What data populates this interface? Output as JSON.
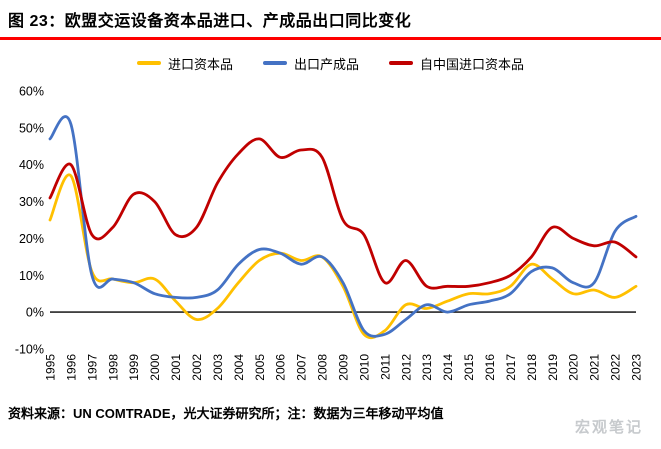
{
  "header": {
    "title": "图 23：欧盟交运设备资本品进口、产成品出口同比变化"
  },
  "legend": [
    {
      "label": "进口资本品",
      "color": "#FFC000"
    },
    {
      "label": "出口产成品",
      "color": "#4472C4"
    },
    {
      "label": "自中国进口资本品",
      "color": "#C00000"
    }
  ],
  "chart_data": {
    "type": "line",
    "title": "欧盟交运设备资本品进口、产成品出口同比变化",
    "xlabel": "",
    "ylabel": "",
    "ylim": [
      -10,
      60
    ],
    "yticks": [
      60,
      50,
      40,
      30,
      20,
      10,
      0,
      -10
    ],
    "ytick_suffix": "%",
    "grid": false,
    "legend_position": "top",
    "x": [
      1995,
      1996,
      1997,
      1998,
      1999,
      2000,
      2001,
      2002,
      2003,
      2004,
      2005,
      2006,
      2007,
      2008,
      2009,
      2010,
      2011,
      2012,
      2013,
      2014,
      2015,
      2016,
      2017,
      2018,
      2019,
      2020,
      2021,
      2022,
      2023
    ],
    "series": [
      {
        "name": "进口资本品",
        "color": "#FFC000",
        "values": [
          25,
          37,
          11,
          9,
          8,
          9,
          3,
          -2,
          1,
          8,
          14,
          16,
          14,
          15,
          7,
          -6,
          -5,
          2,
          1,
          3,
          5,
          5,
          7,
          13,
          9,
          5,
          6,
          4,
          7
        ]
      },
      {
        "name": "出口产成品",
        "color": "#4472C4",
        "values": [
          47,
          51,
          10,
          9,
          8,
          5,
          4,
          4,
          6,
          13,
          17,
          16,
          13,
          15,
          8,
          -5,
          -6,
          -2,
          2,
          0,
          2,
          3,
          5,
          11,
          12,
          8,
          8,
          22,
          26
        ]
      },
      {
        "name": "自中国进口资本品",
        "color": "#C00000",
        "values": [
          31,
          40,
          21,
          23,
          32,
          30,
          21,
          23,
          35,
          43,
          47,
          42,
          44,
          42,
          25,
          21,
          8,
          14,
          7,
          7,
          7,
          8,
          10,
          15,
          23,
          20,
          18,
          19,
          15
        ]
      }
    ]
  },
  "footer": {
    "source": "资料来源：UN COMTRADE，光大证券研究所；注：数据为三年移动平均值",
    "watermark": "宏观笔记"
  }
}
